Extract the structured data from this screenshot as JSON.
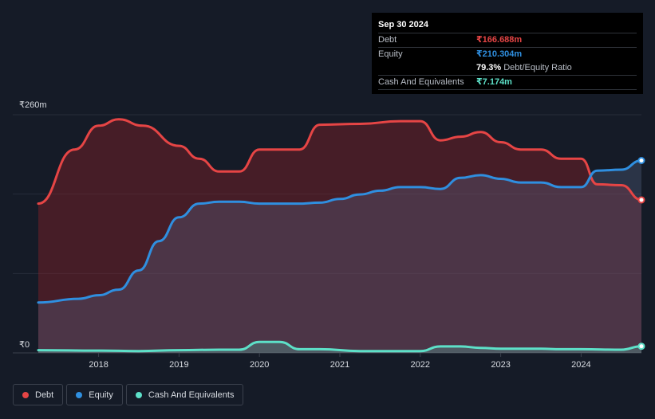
{
  "colors": {
    "debt": "#e64545",
    "equity": "#2f8fe0",
    "cash": "#5de0c8",
    "background": "#151b27"
  },
  "tooltip": {
    "date": "Sep 30 2024",
    "debt_label": "Debt",
    "debt_value": "₹166.688m",
    "equity_label": "Equity",
    "equity_value": "₹210.304m",
    "ratio_value": "79.3%",
    "ratio_label": "Debt/Equity Ratio",
    "cash_label": "Cash And Equivalents",
    "cash_value": "₹7.174m"
  },
  "legend": [
    {
      "label": "Debt",
      "color": "#e64545"
    },
    {
      "label": "Equity",
      "color": "#2f8fe0"
    },
    {
      "label": "Cash And Equivalents",
      "color": "#5de0c8"
    }
  ],
  "chart_data": {
    "type": "area",
    "title": "",
    "xlabel": "",
    "ylabel": "",
    "ylim": [
      0,
      260
    ],
    "xlim": [
      2017.25,
      2024.75
    ],
    "y_tick_labels": [
      {
        "value": 0,
        "label": "₹0"
      },
      {
        "value": 260,
        "label": "₹260m"
      }
    ],
    "x_ticks": [
      {
        "value": 2018,
        "label": "2018"
      },
      {
        "value": 2019,
        "label": "2019"
      },
      {
        "value": 2020,
        "label": "2020"
      },
      {
        "value": 2021,
        "label": "2021"
      },
      {
        "value": 2022,
        "label": "2022"
      },
      {
        "value": 2023,
        "label": "2023"
      },
      {
        "value": 2024,
        "label": "2024"
      }
    ],
    "series": [
      {
        "name": "Debt",
        "points": [
          [
            2017.25,
            163
          ],
          [
            2017.7,
            222
          ],
          [
            2018.0,
            248
          ],
          [
            2018.25,
            255
          ],
          [
            2018.55,
            248
          ],
          [
            2019.0,
            226
          ],
          [
            2019.25,
            212
          ],
          [
            2019.5,
            198
          ],
          [
            2019.75,
            198
          ],
          [
            2020.0,
            222
          ],
          [
            2020.5,
            222
          ],
          [
            2020.75,
            249
          ],
          [
            2021.25,
            250
          ],
          [
            2021.75,
            253
          ],
          [
            2022.0,
            253
          ],
          [
            2022.25,
            232
          ],
          [
            2022.5,
            236
          ],
          [
            2022.75,
            241
          ],
          [
            2023.0,
            230
          ],
          [
            2023.25,
            222
          ],
          [
            2023.5,
            222
          ],
          [
            2023.75,
            212
          ],
          [
            2024.0,
            212
          ],
          [
            2024.2,
            184
          ],
          [
            2024.5,
            183
          ],
          [
            2024.75,
            167
          ]
        ]
      },
      {
        "name": "Equity",
        "points": [
          [
            2017.25,
            55
          ],
          [
            2017.75,
            59
          ],
          [
            2018.0,
            63
          ],
          [
            2018.25,
            69
          ],
          [
            2018.5,
            90
          ],
          [
            2018.75,
            122
          ],
          [
            2019.0,
            148
          ],
          [
            2019.25,
            163
          ],
          [
            2019.5,
            165
          ],
          [
            2019.75,
            165
          ],
          [
            2020.0,
            163
          ],
          [
            2020.5,
            163
          ],
          [
            2020.75,
            164
          ],
          [
            2021.0,
            168
          ],
          [
            2021.25,
            173
          ],
          [
            2021.5,
            177
          ],
          [
            2021.75,
            181
          ],
          [
            2022.0,
            181
          ],
          [
            2022.25,
            179
          ],
          [
            2022.5,
            191
          ],
          [
            2022.75,
            194
          ],
          [
            2023.0,
            190
          ],
          [
            2023.25,
            186
          ],
          [
            2023.5,
            186
          ],
          [
            2023.75,
            181
          ],
          [
            2024.0,
            181
          ],
          [
            2024.2,
            199
          ],
          [
            2024.5,
            200
          ],
          [
            2024.75,
            210
          ]
        ]
      },
      {
        "name": "Cash And Equivalents",
        "points": [
          [
            2017.25,
            3
          ],
          [
            2018.0,
            2.5
          ],
          [
            2018.5,
            2
          ],
          [
            2019.0,
            3
          ],
          [
            2019.5,
            3.5
          ],
          [
            2019.75,
            3.5
          ],
          [
            2020.0,
            12
          ],
          [
            2020.25,
            12
          ],
          [
            2020.5,
            4
          ],
          [
            2020.75,
            4
          ],
          [
            2021.25,
            2
          ],
          [
            2021.75,
            2
          ],
          [
            2022.0,
            2
          ],
          [
            2022.25,
            7
          ],
          [
            2022.5,
            7
          ],
          [
            2022.75,
            5.5
          ],
          [
            2023.0,
            4.5
          ],
          [
            2023.5,
            4.5
          ],
          [
            2023.75,
            4
          ],
          [
            2024.0,
            4
          ],
          [
            2024.5,
            3.5
          ],
          [
            2024.75,
            7.2
          ]
        ]
      }
    ]
  }
}
